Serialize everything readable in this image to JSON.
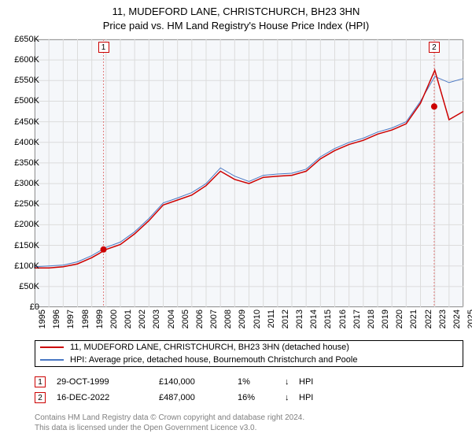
{
  "title_line1": "11, MUDEFORD LANE, CHRISTCHURCH, BH23 3HN",
  "title_line2": "Price paid vs. HM Land Registry's House Price Index (HPI)",
  "chart": {
    "type": "line",
    "background_color": "#f5f7fa",
    "border_color": "#555555",
    "grid_color": "#dcdcdc",
    "x_years": [
      1995,
      1996,
      1997,
      1998,
      1999,
      2000,
      2001,
      2002,
      2003,
      2004,
      2005,
      2006,
      2007,
      2008,
      2009,
      2010,
      2011,
      2012,
      2013,
      2014,
      2015,
      2016,
      2017,
      2018,
      2019,
      2020,
      2021,
      2022,
      2023,
      2024,
      2025
    ],
    "ylim": [
      0,
      650000
    ],
    "ytick_step": 50000,
    "yticks": [
      "£0",
      "£50K",
      "£100K",
      "£150K",
      "£200K",
      "£250K",
      "£300K",
      "£350K",
      "£400K",
      "£450K",
      "£500K",
      "£550K",
      "£600K",
      "£650K"
    ],
    "series": [
      {
        "name": "property",
        "label": "11, MUDEFORD LANE, CHRISTCHURCH, BH23 3HN (detached house)",
        "color": "#cc0000",
        "width": 1.5,
        "values": [
          95,
          95,
          98,
          105,
          120,
          140,
          152,
          178,
          210,
          248,
          260,
          272,
          295,
          330,
          310,
          300,
          315,
          318,
          320,
          330,
          360,
          380,
          395,
          405,
          420,
          430,
          445,
          495,
          575,
          455,
          475
        ]
      },
      {
        "name": "hpi",
        "label": "HPI: Average price, detached house, Bournemouth Christchurch and Poole",
        "color": "#4a78c4",
        "width": 1.0,
        "values": [
          98,
          100,
          102,
          110,
          125,
          145,
          158,
          183,
          215,
          253,
          265,
          278,
          300,
          338,
          318,
          305,
          320,
          323,
          325,
          335,
          365,
          385,
          400,
          410,
          425,
          435,
          450,
          500,
          560,
          545,
          555
        ]
      }
    ],
    "sale_markers": [
      {
        "n": "1",
        "year": 1999.82,
        "price": 140000,
        "box_color": "#cc0000",
        "vline_color": "#e07a7a",
        "date": "29-OCT-1999",
        "price_str": "£140,000",
        "diff": "1%",
        "arrow": "↓",
        "note": "HPI"
      },
      {
        "n": "2",
        "year": 2022.96,
        "price": 487000,
        "box_color": "#cc0000",
        "vline_color": "#e07a7a",
        "date": "16-DEC-2022",
        "price_str": "£487,000",
        "diff": "16%",
        "arrow": "↓",
        "note": "HPI"
      }
    ]
  },
  "attribution_line1": "Contains HM Land Registry data © Crown copyright and database right 2024.",
  "attribution_line2": "This data is licensed under the Open Government Licence v3.0."
}
